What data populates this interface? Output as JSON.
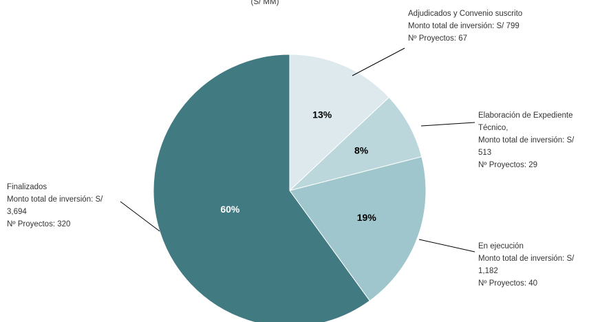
{
  "chart_data": {
    "type": "pie",
    "subtitle": "(S/ MM)",
    "values": [
      13,
      8,
      19,
      60
    ],
    "value_labels": [
      "13%",
      "8%",
      "19%",
      "60%"
    ],
    "colors": [
      "#dde9ec",
      "#bcd7db",
      "#9fc6cc",
      "#427a82"
    ],
    "labels": [
      [
        "Adjudicados y Convenio suscrito",
        "Monto total de inversión: S/ 799",
        "Nº Proyectos: 67"
      ],
      [
        "Elaboración de Expediente",
        "Técnico,",
        "Monto total de inversión: S/",
        "513",
        "Nº Proyectos: 29"
      ],
      [
        "En ejecución",
        "Monto total de inversión: S/",
        "1,182",
        "Nº Proyectos: 40"
      ],
      [
        "Finalizados",
        "Monto total de inversión: S/",
        "3,694",
        "Nº Proyectos: 320"
      ]
    ]
  }
}
